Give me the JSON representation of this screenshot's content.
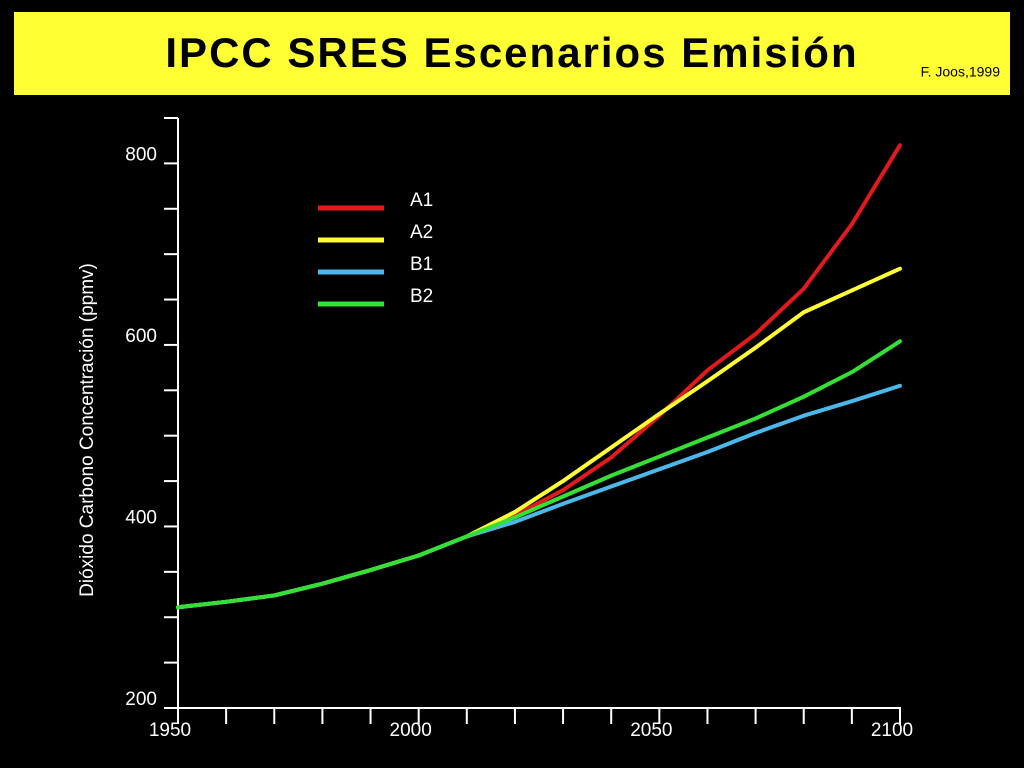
{
  "chart_data": {
    "type": "line",
    "title": "IPCC SRES Escenarios Emisión",
    "subtitle": "F. Joos,1999",
    "ylabel": "Dióxido  Carbono Concentración (ppmv)",
    "x": [
      1950,
      1960,
      1970,
      1980,
      1990,
      2000,
      2010,
      2020,
      2030,
      2040,
      2050,
      2060,
      2070,
      2080,
      2090,
      2100
    ],
    "series": [
      {
        "name": "A1",
        "color": "#e3191c",
        "values": [
          311,
          317,
          324,
          337,
          352,
          368,
          389,
          412,
          440,
          476,
          522,
          572,
          612,
          662,
          733,
          820
        ]
      },
      {
        "name": "A2",
        "color": "#ffff33",
        "values": [
          311,
          317,
          324,
          337,
          352,
          368,
          389,
          416,
          450,
          487,
          524,
          560,
          597,
          636,
          660,
          684
        ]
      },
      {
        "name": "B1",
        "color": "#4bb8ea",
        "values": [
          311,
          317,
          324,
          337,
          352,
          368,
          389,
          405,
          425,
          444,
          463,
          482,
          503,
          522,
          538,
          555
        ]
      },
      {
        "name": "B2",
        "color": "#33e033",
        "values": [
          311,
          317,
          324,
          337,
          352,
          368,
          389,
          410,
          433,
          456,
          477,
          498,
          519,
          543,
          570,
          604
        ]
      }
    ],
    "xlim": [
      1950,
      2100
    ],
    "xticks": [
      1950,
      2000,
      2050,
      2100
    ],
    "xticks_minor": [
      1960,
      1970,
      1980,
      1990,
      2010,
      2020,
      2030,
      2040,
      2060,
      2070,
      2080,
      2090
    ],
    "ylim": [
      200,
      850
    ],
    "yticks": [
      200,
      400,
      600,
      800
    ],
    "yticks_minor": [
      250,
      300,
      350,
      450,
      500,
      550,
      650,
      700,
      750,
      850
    ]
  }
}
